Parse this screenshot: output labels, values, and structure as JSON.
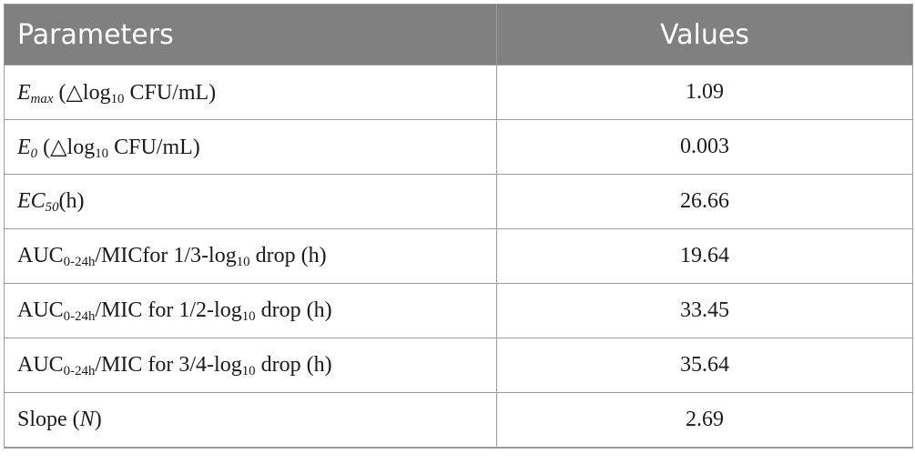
{
  "table": {
    "headers": {
      "parameters": "Parameters",
      "values": "Values"
    },
    "rows": [
      {
        "param": {
          "main": "E",
          "sub": "max",
          "rest": " (△log",
          "sub2": "10",
          "tail": " CFU/mL)"
        },
        "value": "1.09"
      },
      {
        "param": {
          "main": "E",
          "sub": "0",
          "rest": " (△log",
          "sub2": "10",
          "tail": " CFU/mL)"
        },
        "value": "0.003"
      },
      {
        "param": {
          "main": "EC",
          "sub": "50",
          "rest": "(h)"
        },
        "value": "26.66"
      },
      {
        "param": {
          "main": "AUC",
          "sub": "0-24h",
          "rest": "/MICfor 1/3-log",
          "sub2": "10",
          "tail": " drop (h)"
        },
        "value": "19.64"
      },
      {
        "param": {
          "main": "AUC",
          "sub": "0-24h",
          "rest": "/MIC for 1/2-log",
          "sub2": "10",
          "tail": " drop (h)"
        },
        "value": "33.45"
      },
      {
        "param": {
          "main": "AUC",
          "sub": "0-24h",
          "rest": "/MIC for 3/4-log",
          "sub2": "10",
          "tail": " drop (h)"
        },
        "value": "35.64"
      },
      {
        "param": {
          "pre": "Slope (",
          "italic": "N",
          "post": ")"
        },
        "value": "2.69"
      }
    ]
  }
}
